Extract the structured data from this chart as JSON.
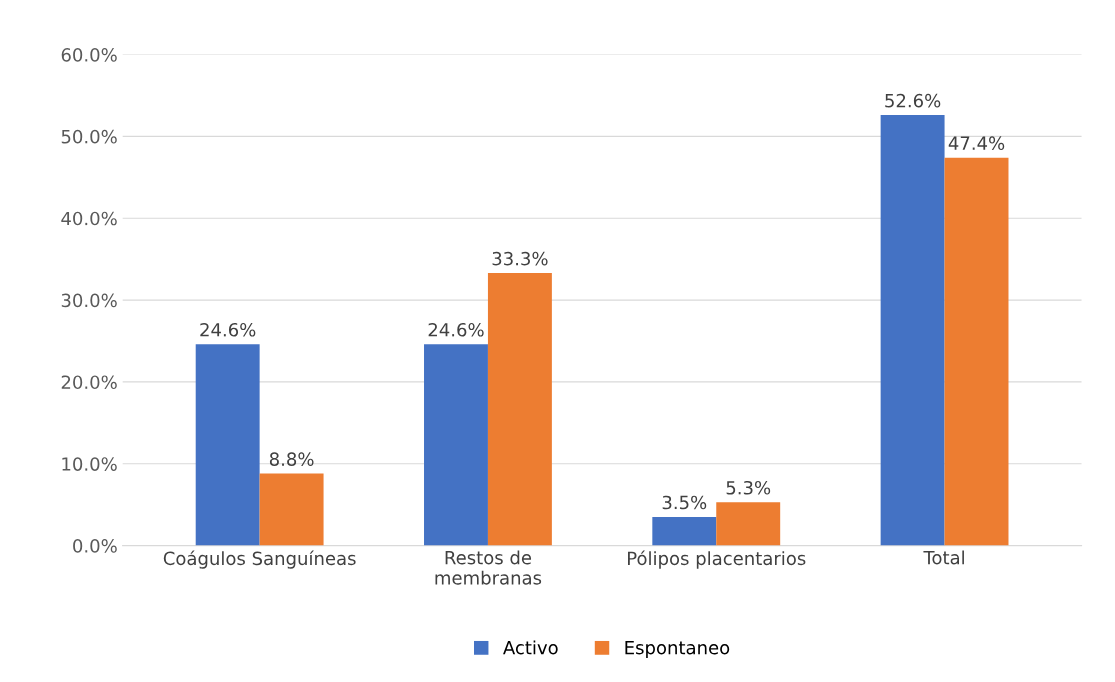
{
  "chart_data": {
    "type": "bar",
    "categories": [
      "Coágulos Sanguíneas",
      "Restos de\nmembranas",
      "Pólipos placentarios",
      "Total"
    ],
    "series": [
      {
        "name": "Activo",
        "color": "#4472c4",
        "values": [
          24.6,
          24.6,
          3.5,
          52.6
        ],
        "value_labels": [
          "24.6%",
          "24.6%",
          "3.5%",
          "52.6%"
        ]
      },
      {
        "name": "Espontaneo",
        "color": "#ed7d31",
        "values": [
          8.8,
          33.3,
          5.3,
          47.4
        ],
        "value_labels": [
          "8.8%",
          "33.3%",
          "5.3%",
          "47.4%"
        ]
      }
    ],
    "ylim": [
      0,
      60
    ],
    "yticks": [
      {
        "value": 0,
        "label": "0.0%"
      },
      {
        "value": 10,
        "label": "10.0%"
      },
      {
        "value": 20,
        "label": "20.0%"
      },
      {
        "value": 30,
        "label": "30.0%"
      },
      {
        "value": 40,
        "label": "40.0%"
      },
      {
        "value": 50,
        "label": "50.0%"
      },
      {
        "value": 60,
        "label": "60.0%"
      }
    ],
    "grid": "y",
    "legend": "bottom"
  }
}
